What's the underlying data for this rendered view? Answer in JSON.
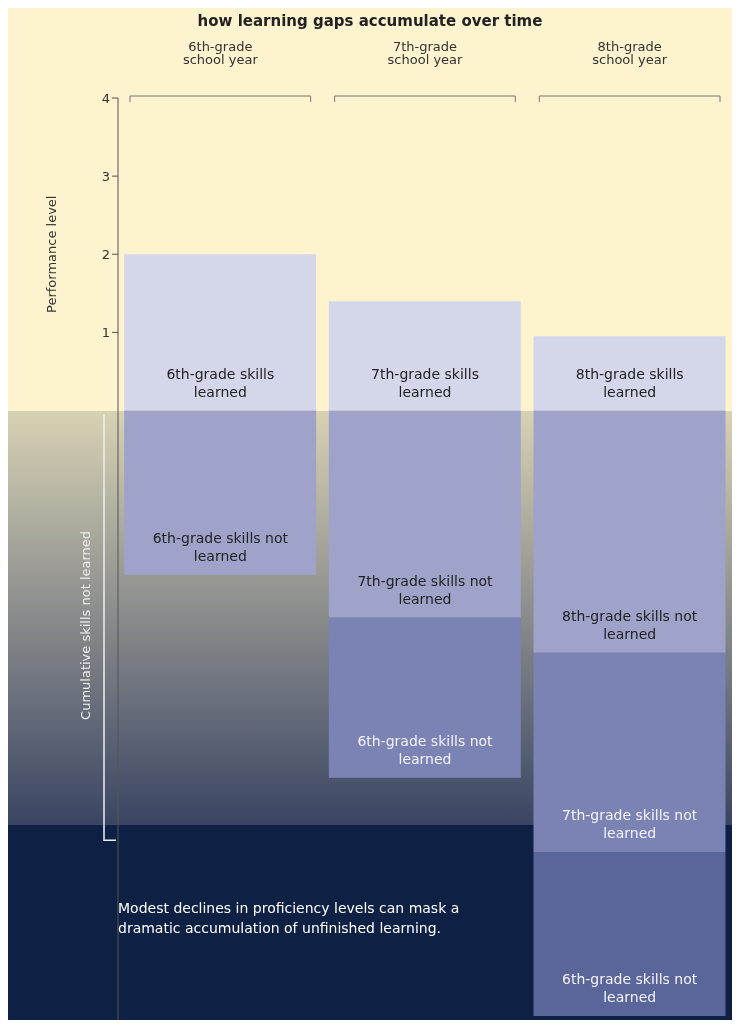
{
  "chart_data": {
    "type": "bar",
    "stacked": true,
    "title": "how learning gaps accumulate over time",
    "ylabel": "Performance level",
    "categories": [
      "6th-grade school year",
      "7th-grade school year",
      "8th-grade school year"
    ],
    "series": [
      {
        "color": "#d4d7ea",
        "values": [
          2,
          1.4,
          0.95
        ]
      },
      {
        "color": "#9fa3ca",
        "values": [
          -2.1,
          -2.65,
          -3.1
        ]
      },
      {
        "color": "#7b82b4",
        "values": [
          null,
          -2.05,
          -2.55
        ]
      },
      {
        "color": "#5a6599",
        "values": [
          null,
          null,
          -2.1
        ]
      }
    ],
    "ylim": [
      -7.8,
      4
    ],
    "yticks": [
      1,
      2,
      3,
      4
    ],
    "grid": false,
    "legend": false,
    "annotations": [
      "6th-grade skills learned",
      "7th-grade skills learned",
      "8th-grade skills learned",
      "6th-grade skills not learned",
      "7th-grade skills not learned",
      "6th-grade skills not learned",
      "8th-grade skills not learned",
      "7th-grade skills not learned",
      "6th-grade skills not learned",
      "Cumulative skills not learned",
      "Modest declines in proficiency levels can mask a dramatic accumulation of unfinished learning."
    ]
  }
}
